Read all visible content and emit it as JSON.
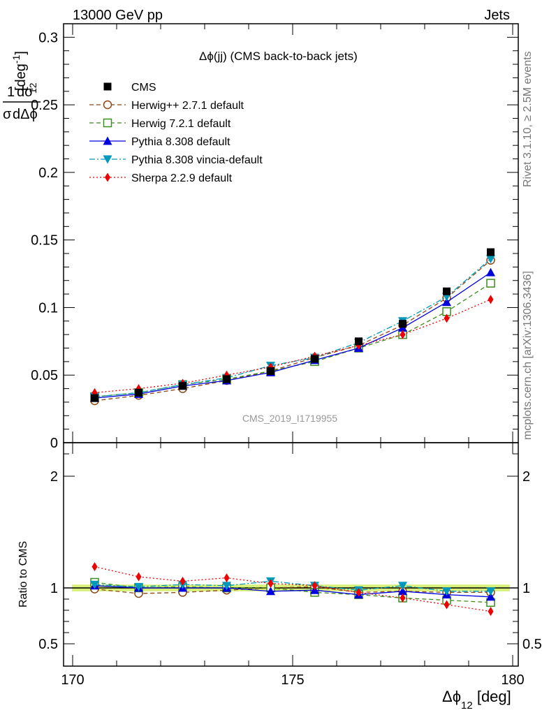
{
  "header": {
    "beam": "13000 GeV pp",
    "process": "Jets",
    "title_phi": "Δϕ",
    "title_rest": "(jj) (CMS back-to-back jets)",
    "analysis_id": "CMS_2019_I1719955",
    "side_top": "Rivet 3.1.10, ≥ 2.5M events",
    "side_bottom": "mcplots.cern.ch [arXiv:1306.3436]"
  },
  "axes": {
    "main_ylabel": {
      "frac_num": "1",
      "frac_num_rest": "dσ",
      "frac_den": "σ",
      "frac_den_rest": "dΔϕ",
      "frac_den_sub": "12",
      "unit": "[deg",
      "unit_sup": "-1",
      "unit_close": "]"
    },
    "ratio_ylabel": "Ratio to CMS",
    "xlabel": {
      "sym": "Δϕ",
      "sub": "12",
      "unit": " [deg]"
    }
  },
  "chart_data": {
    "type": "scatter",
    "x": [
      170.5,
      171.5,
      172.5,
      173.5,
      174.5,
      175.5,
      176.5,
      177.5,
      178.5,
      179.5
    ],
    "xlim": [
      170,
      180
    ],
    "xticks": [
      "170",
      "175",
      "180"
    ],
    "ylim": [
      0,
      0.31
    ],
    "yticks": [
      "0",
      "0.05",
      "0.1",
      "0.15",
      "0.2",
      "0.25",
      "0.3"
    ],
    "ratio_ylim": [
      0.3,
      2.3
    ],
    "ratio_yticks": [
      "0.5",
      "1",
      "2"
    ],
    "ratio_band": [
      0.97,
      1.03
    ],
    "series": [
      {
        "name": "CMS",
        "color": "#000000",
        "marker": "square-filled",
        "dash": "none",
        "values": [
          0.033,
          0.037,
          0.042,
          0.047,
          0.053,
          0.062,
          0.075,
          0.088,
          0.112,
          0.141
        ],
        "ratio": [
          1.0,
          1.0,
          1.0,
          1.0,
          1.0,
          1.0,
          1.0,
          1.0,
          1.0,
          1.0
        ]
      },
      {
        "name": "Herwig++ 2.7.1 default",
        "color": "#8B4513",
        "marker": "circle-open",
        "dash": "6,4",
        "values": [
          0.031,
          0.035,
          0.04,
          0.046,
          0.053,
          0.063,
          0.072,
          0.087,
          0.107,
          0.135
        ],
        "ratio": [
          0.99,
          0.95,
          0.96,
          0.98,
          1.0,
          1.01,
          0.96,
          0.97,
          0.96,
          0.96
        ]
      },
      {
        "name": "Herwig 7.2.1 default",
        "color": "#3C8C1E",
        "marker": "square-open",
        "dash": "6,4",
        "values": [
          0.034,
          0.037,
          0.043,
          0.047,
          0.053,
          0.06,
          0.07,
          0.08,
          0.097,
          0.118
        ],
        "ratio": [
          1.05,
          1.0,
          1.01,
          1.0,
          1.0,
          0.96,
          0.94,
          0.91,
          0.89,
          0.87
        ]
      },
      {
        "name": "Pythia 8.308 default",
        "color": "#0000DD",
        "marker": "triangle-up",
        "dash": "none",
        "values": [
          0.033,
          0.036,
          0.042,
          0.046,
          0.052,
          0.061,
          0.07,
          0.085,
          0.104,
          0.126
        ],
        "ratio": [
          1.02,
          1.0,
          1.0,
          1.0,
          0.97,
          0.98,
          0.94,
          0.97,
          0.94,
          0.92
        ]
      },
      {
        "name": "Pythia 8.308 vincia-default",
        "color": "#0099BB",
        "marker": "triangle-down",
        "dash": "8,3,2,3",
        "values": [
          0.034,
          0.037,
          0.043,
          0.048,
          0.057,
          0.063,
          0.074,
          0.09,
          0.108,
          0.136
        ],
        "ratio": [
          1.03,
          1.01,
          1.03,
          1.02,
          1.06,
          1.02,
          0.98,
          1.02,
          0.97,
          0.97
        ]
      },
      {
        "name": "Sherpa 2.2.9 default",
        "color": "#EE0000",
        "marker": "diamond",
        "dash": "2,3",
        "values": [
          0.037,
          0.04,
          0.044,
          0.05,
          0.056,
          0.064,
          0.072,
          0.08,
          0.092,
          0.106
        ],
        "ratio": [
          1.19,
          1.1,
          1.06,
          1.09,
          1.04,
          1.02,
          0.96,
          0.91,
          0.85,
          0.79
        ]
      }
    ]
  }
}
